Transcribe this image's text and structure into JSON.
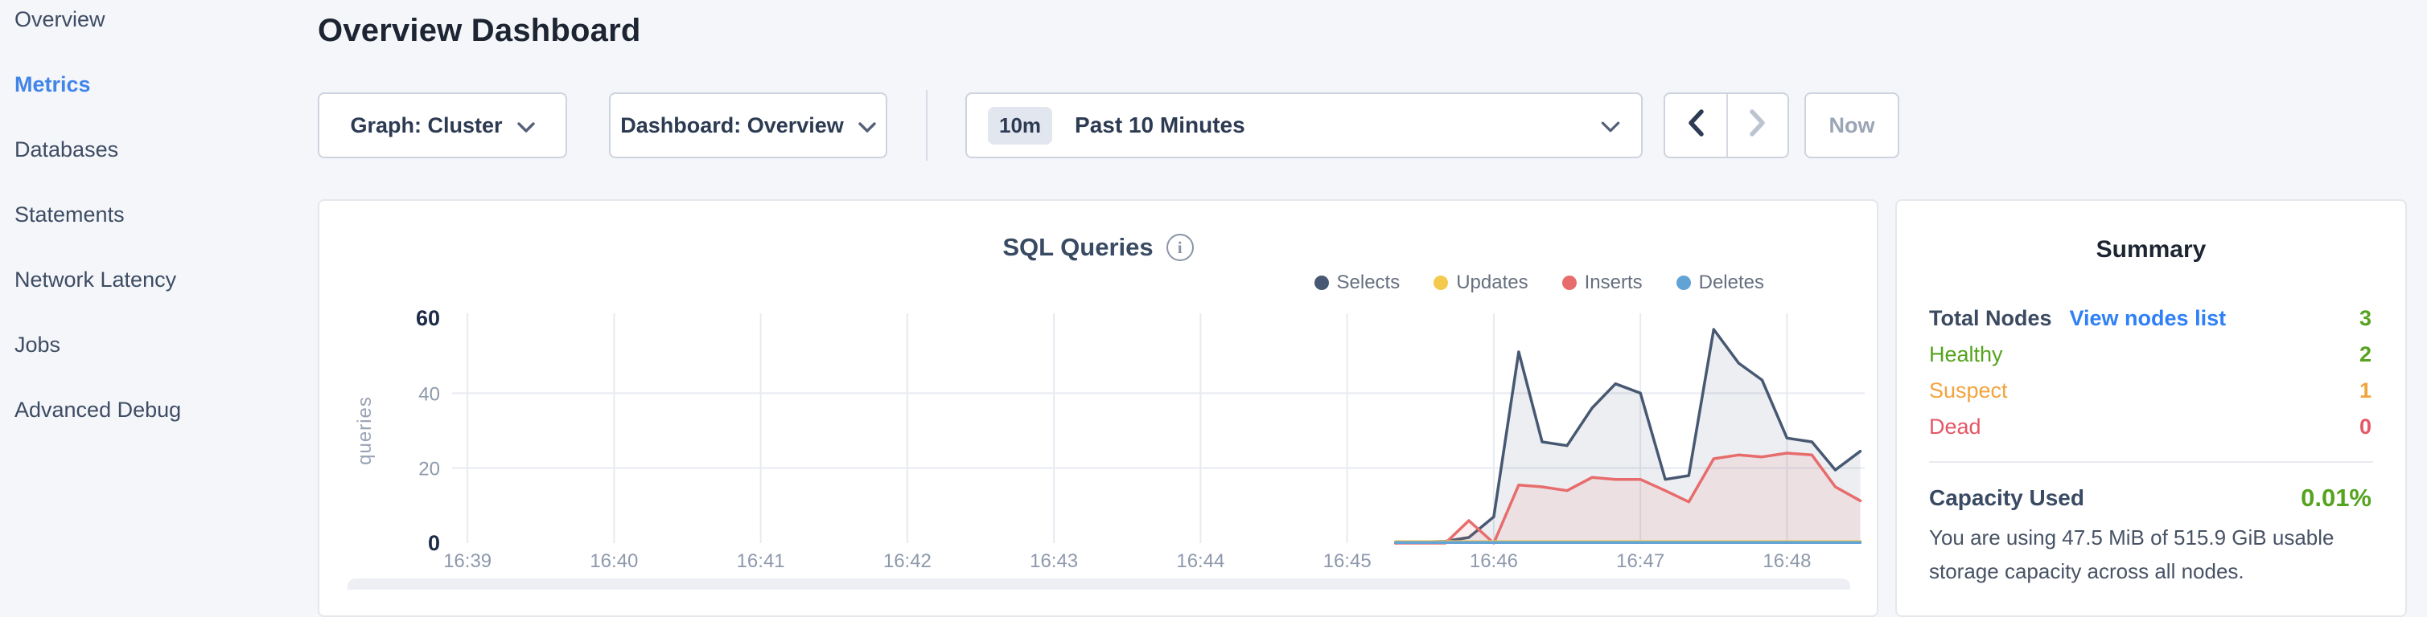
{
  "sidebar": {
    "items": [
      {
        "label": "Overview",
        "active": false
      },
      {
        "label": "Metrics",
        "active": true
      },
      {
        "label": "Databases",
        "active": false
      },
      {
        "label": "Statements",
        "active": false
      },
      {
        "label": "Network Latency",
        "active": false
      },
      {
        "label": "Jobs",
        "active": false
      },
      {
        "label": "Advanced Debug",
        "active": false
      }
    ]
  },
  "header": {
    "title": "Overview Dashboard"
  },
  "controls": {
    "graph_dropdown": {
      "label": "Graph: Cluster"
    },
    "dashboard_dropdown": {
      "label": "Dashboard: Overview"
    },
    "time_window": {
      "badge": "10m",
      "label": "Past 10 Minutes"
    },
    "now_label": "Now"
  },
  "chart_data": {
    "type": "area",
    "title": "SQL Queries",
    "ylabel": "queries",
    "ylim": [
      0,
      60
    ],
    "yticks": [
      0,
      20,
      40,
      60
    ],
    "grid": "on",
    "legend_position": "top-right",
    "axis": {
      "tmin": 38.95,
      "tmax": 48.53,
      "ymax": 60
    },
    "xticks": [
      {
        "t": 39,
        "label": "16:39"
      },
      {
        "t": 40,
        "label": "16:40"
      },
      {
        "t": 41,
        "label": "16:41"
      },
      {
        "t": 42,
        "label": "16:42"
      },
      {
        "t": 43,
        "label": "16:43"
      },
      {
        "t": 44,
        "label": "16:44"
      },
      {
        "t": 45,
        "label": "16:45"
      },
      {
        "t": 46,
        "label": "16:46"
      },
      {
        "t": 47,
        "label": "16:47"
      },
      {
        "t": 48,
        "label": "16:48"
      }
    ],
    "x_minutes": [
      45.33,
      45.5,
      45.67,
      45.83,
      46.0,
      46.17,
      46.33,
      46.5,
      46.67,
      46.83,
      47.0,
      47.17,
      47.33,
      47.5,
      47.67,
      47.83,
      48.0,
      48.17,
      48.33,
      48.5
    ],
    "series": [
      {
        "name": "Selects",
        "color": "#475872",
        "fill": "rgba(71,88,114,0.10)",
        "values": [
          0,
          0.3,
          0.5,
          1.5,
          7,
          51,
          27,
          26,
          36,
          42.5,
          40,
          17,
          18,
          57,
          48,
          43.5,
          28,
          27,
          19.5,
          24.5
        ]
      },
      {
        "name": "Updates",
        "color": "#f4ca4e",
        "fill": "none",
        "values": [
          0.4,
          0.4,
          0.4,
          0.4,
          0.4,
          0.4,
          0.4,
          0.4,
          0.4,
          0.4,
          0.4,
          0.4,
          0.4,
          0.4,
          0.4,
          0.4,
          0.4,
          0.4,
          0.4,
          0.4
        ]
      },
      {
        "name": "Inserts",
        "color": "#e86c6c",
        "fill": "rgba(232,108,108,0.10)",
        "values": [
          0,
          0,
          0,
          6,
          0,
          15.5,
          15,
          14,
          17.5,
          17,
          17,
          14,
          11,
          22.5,
          23.5,
          23,
          24,
          23.5,
          15,
          11.3
        ]
      },
      {
        "name": "Deletes",
        "color": "#62a3d6",
        "fill": "none",
        "values": [
          0.15,
          0.15,
          0.15,
          0.15,
          0.15,
          0.15,
          0.15,
          0.15,
          0.15,
          0.15,
          0.15,
          0.15,
          0.15,
          0.15,
          0.15,
          0.15,
          0.15,
          0.15,
          0.15,
          0.15
        ]
      }
    ],
    "draw_order": [
      0,
      2,
      1,
      3
    ]
  },
  "summary": {
    "title": "Summary",
    "rows": [
      {
        "label": "Total Nodes",
        "label_color": "#3c4a61",
        "bold": true,
        "link": "View nodes list",
        "value": "3",
        "value_color": "#55a31e",
        "name": "total-nodes"
      },
      {
        "label": "Healthy",
        "label_color": "#55a31e",
        "bold": false,
        "link": null,
        "value": "2",
        "value_color": "#55a31e",
        "name": "healthy"
      },
      {
        "label": "Suspect",
        "label_color": "#f2a33c",
        "bold": false,
        "link": null,
        "value": "1",
        "value_color": "#f2a33c",
        "name": "suspect"
      },
      {
        "label": "Dead",
        "label_color": "#e45765",
        "bold": false,
        "link": null,
        "value": "0",
        "value_color": "#e45765",
        "name": "dead"
      }
    ],
    "capacity": {
      "label": "Capacity Used",
      "value": "0.01%",
      "value_color": "#55a31e",
      "description": "You are using 47.5 MiB of 515.9 GiB usable storage capacity across all nodes."
    }
  },
  "colors": {
    "accent_blue": "#4285e8",
    "link_blue": "#2f80f7",
    "healthy_green": "#55a31e",
    "suspect_orange": "#f2a33c",
    "dead_red": "#e45765",
    "axis_gray": "#8e99ac",
    "axis_dark": "#1e2c49",
    "gridline": "#e7eaf0",
    "page_bg": "#f4f6fa",
    "card_border": "#e4e7ec"
  }
}
